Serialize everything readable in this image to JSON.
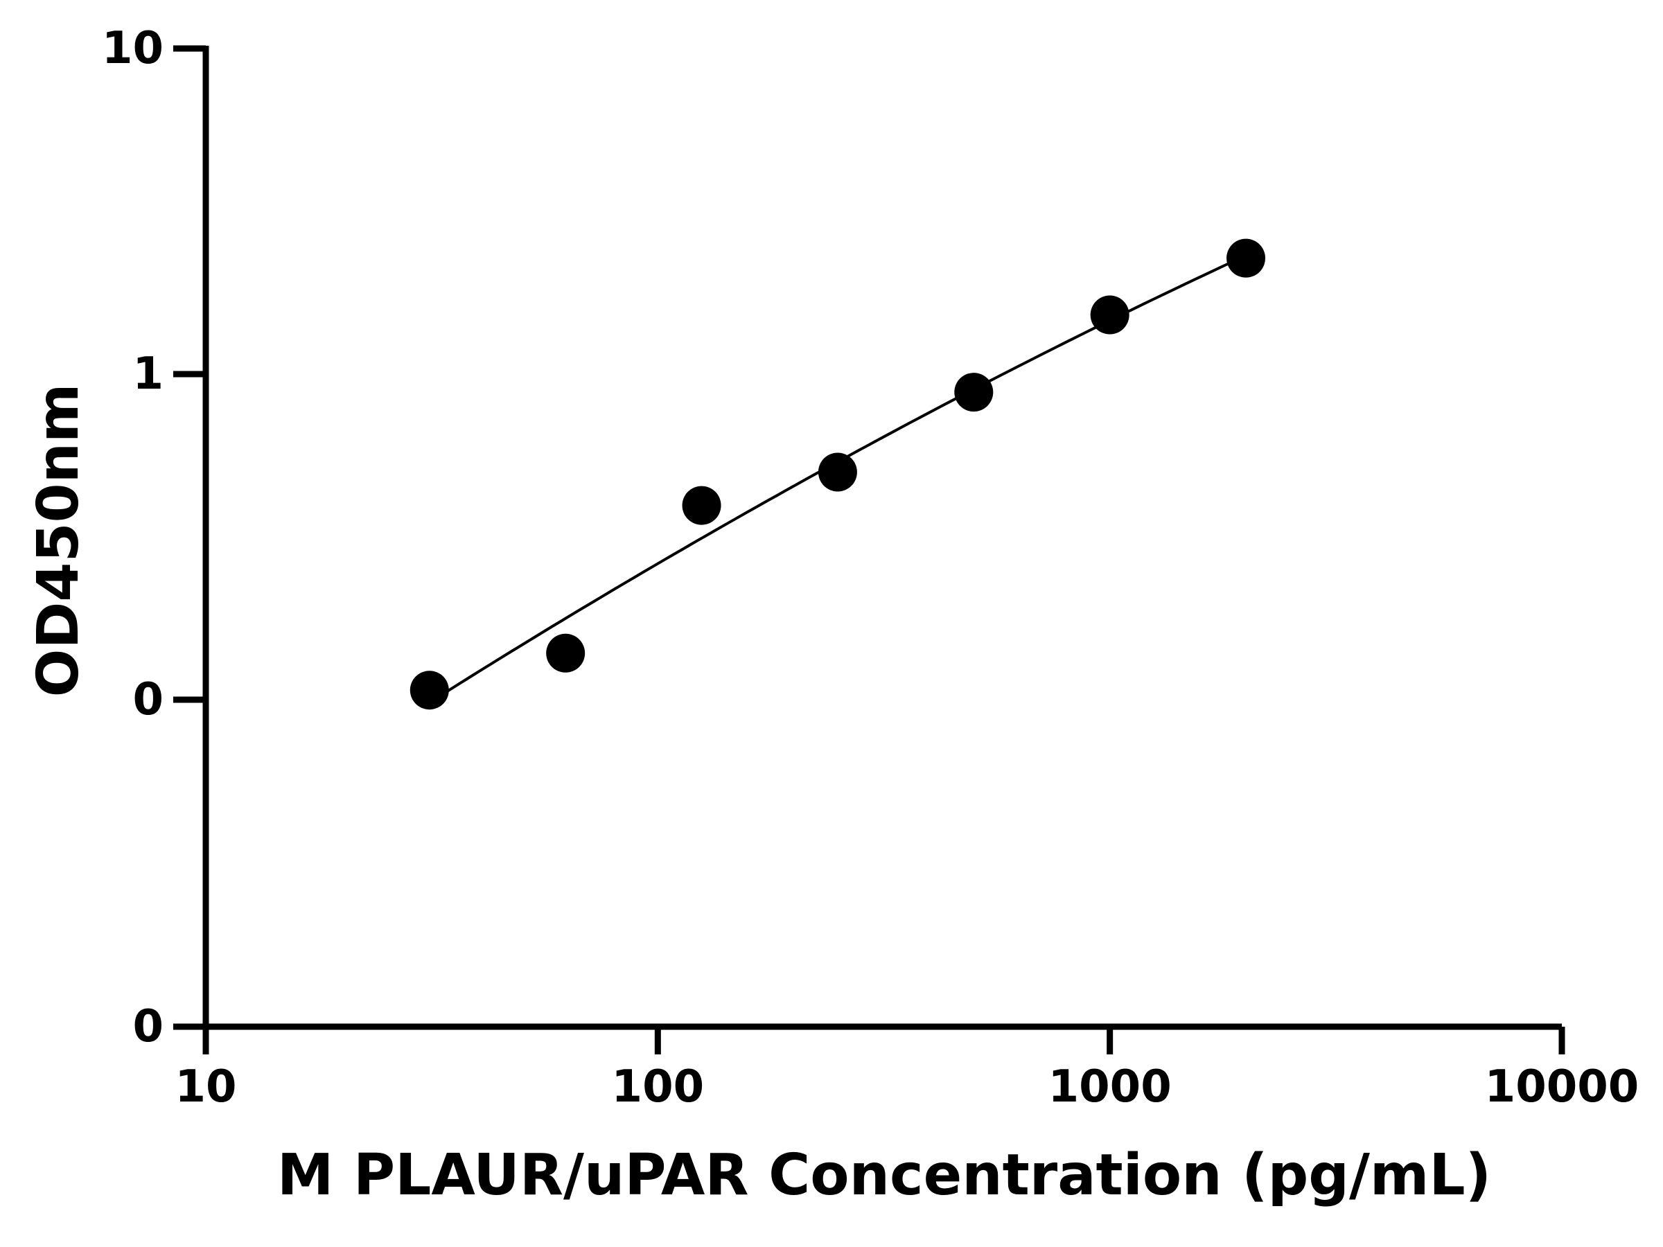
{
  "chart_data": {
    "type": "scatter",
    "xlabel": "M PLAUR/uPAR Concentration (pg/mL)",
    "ylabel": "OD450nm",
    "x_scale": "log",
    "y_scale": "log",
    "xlim": [
      10,
      10000
    ],
    "x_ticks": [
      10,
      100,
      1000,
      10000
    ],
    "x_tick_labels": [
      "10",
      "100",
      "1000",
      "10000"
    ],
    "y_ticks": [
      0.1,
      1,
      10
    ],
    "y_tick_labels": [
      "0",
      "1",
      "10"
    ],
    "y_axis_bottom_label": "0",
    "grid": false,
    "legend": "none",
    "series": [
      {
        "x": [
          31.25,
          62.5,
          125,
          250,
          500,
          1000,
          2000
        ],
        "y": [
          0.107,
          0.139,
          0.395,
          0.5,
          0.88,
          1.52,
          2.27
        ],
        "marker": "filled-circle",
        "color": "#000000",
        "fit_line": "curve"
      }
    ]
  }
}
